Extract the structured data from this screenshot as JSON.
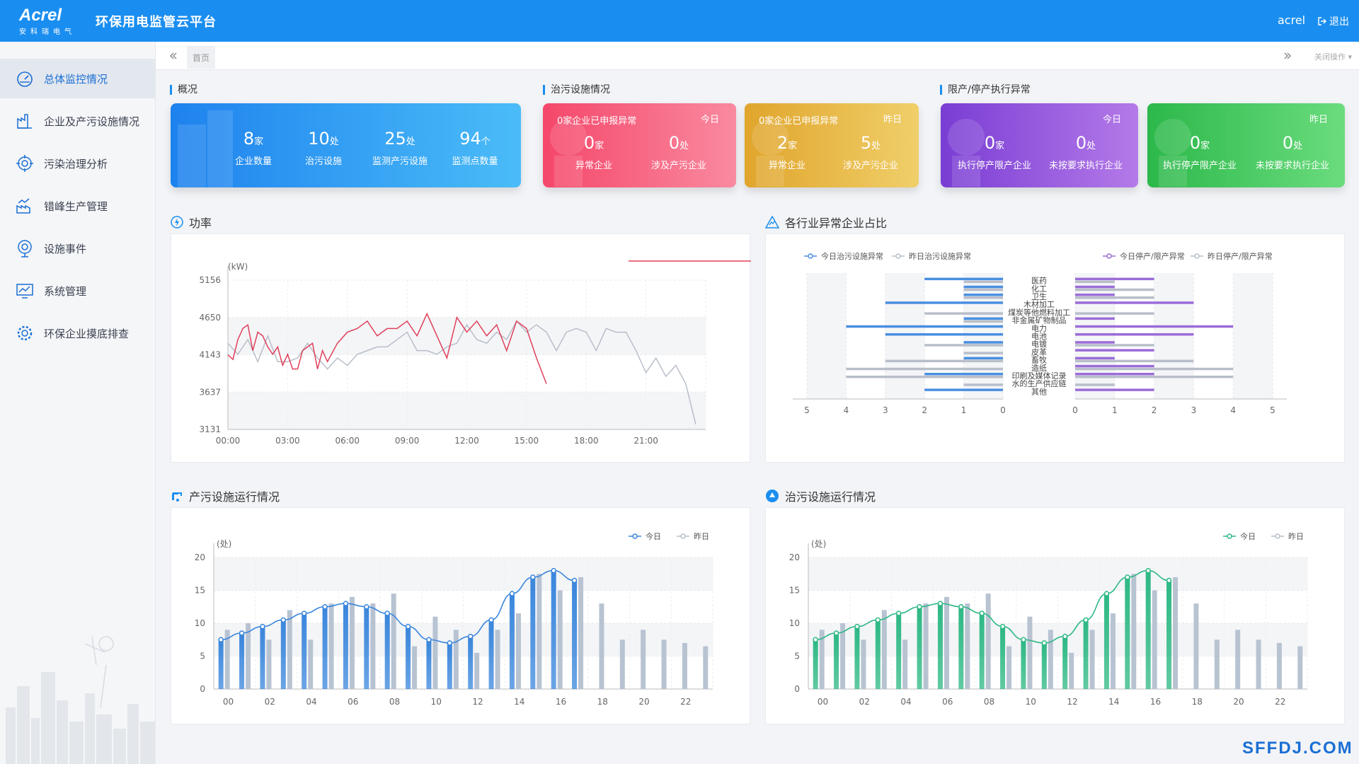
{
  "header": {
    "brand": "Acrel",
    "brand_cn": "安科瑞电气",
    "title": "环保用电监管云平台",
    "user": "acrel",
    "logout": "退出"
  },
  "sidebar": {
    "items": [
      {
        "label": "总体监控情况",
        "icon": "gauge-icon",
        "active": true
      },
      {
        "label": "企业及产污设施情况",
        "icon": "factory-icon"
      },
      {
        "label": "污染治理分析",
        "icon": "target-icon"
      },
      {
        "label": "错峰生产管理",
        "icon": "chart-factory-icon"
      },
      {
        "label": "设施事件",
        "icon": "radar-icon"
      },
      {
        "label": "系统管理",
        "icon": "monitor-chart-icon"
      },
      {
        "label": "环保企业摸底排查",
        "icon": "gear-icon"
      }
    ]
  },
  "tabs": {
    "home": "首页",
    "ops": "关闭操作"
  },
  "overview": {
    "label": "概况",
    "stats": [
      {
        "num": "8",
        "unit": "家",
        "label": "企业数量"
      },
      {
        "num": "10",
        "unit": "处",
        "label": "治污设施"
      },
      {
        "num": "25",
        "unit": "处",
        "label": "监测产污设施"
      },
      {
        "num": "94",
        "unit": "个",
        "label": "监测点数量"
      }
    ]
  },
  "pollution": {
    "label": "治污设施情况",
    "cards": [
      {
        "title": "0家企业已申报异常",
        "day": "今日",
        "a_num": "0",
        "a_unit": "家",
        "a_label": "异常企业",
        "b_num": "0",
        "b_unit": "处",
        "b_label": "涉及产污企业"
      },
      {
        "title": "0家企业已申报异常",
        "day": "昨日",
        "a_num": "2",
        "a_unit": "家",
        "a_label": "异常企业",
        "b_num": "5",
        "b_unit": "处",
        "b_label": "涉及产污企业"
      }
    ]
  },
  "limit": {
    "label": "限产/停产执行异常",
    "cards": [
      {
        "day": "今日",
        "a_num": "0",
        "a_unit": "家",
        "a_label": "执行停产限产企业",
        "b_num": "0",
        "b_unit": "处",
        "b_label": "未按要求执行企业"
      },
      {
        "day": "昨日",
        "a_num": "0",
        "a_unit": "家",
        "a_label": "执行停产限产企业",
        "b_num": "0",
        "b_unit": "处",
        "b_label": "未按要求执行企业"
      }
    ]
  },
  "panels": {
    "power": "功率",
    "industry": "各行业异常企业占比",
    "production": "产污设施运行情况",
    "treatment": "治污设施运行情况"
  },
  "watermark": "SFFDJ.COM",
  "chart_data": [
    {
      "type": "line",
      "unit_label": "(kW)",
      "yticks": [
        "5156",
        "4650",
        "4143",
        "3637",
        "3131"
      ],
      "ylim": [
        3131,
        5156
      ],
      "xticks": [
        "00:00",
        "03:00",
        "06:00",
        "09:00",
        "12:00",
        "15:00",
        "18:00",
        "21:00"
      ],
      "series": [
        {
          "name": "今日",
          "color": "#e0405b",
          "x": [
            0,
            0.25,
            0.5,
            0.75,
            1,
            1.25,
            1.5,
            1.75,
            2,
            2.25,
            2.5,
            2.75,
            3,
            3.25,
            3.5,
            3.75,
            4,
            4.25,
            4.5,
            4.75,
            5,
            5.5,
            6,
            6.5,
            7,
            7.5,
            8,
            8.5,
            9,
            9.5,
            10,
            10.5,
            11,
            11.5,
            12,
            12.5,
            13,
            13.5,
            14,
            14.5,
            15,
            15.5,
            16
          ],
          "values": [
            4143,
            4080,
            4350,
            4500,
            4550,
            4200,
            4450,
            4400,
            4250,
            4150,
            4250,
            4000,
            4150,
            3950,
            3950,
            4200,
            4250,
            4300,
            3950,
            4200,
            4050,
            4300,
            4450,
            4500,
            4600,
            4400,
            4500,
            4500,
            4600,
            4400,
            4700,
            4400,
            4100,
            4650,
            4450,
            4600,
            4400,
            4550,
            4200,
            4600,
            4500,
            4100,
            3750
          ]
        },
        {
          "name": "昨日",
          "color": "#b8bec9",
          "x": [
            0,
            0.5,
            1,
            1.5,
            2,
            2.5,
            3,
            3.5,
            4,
            4.5,
            5,
            5.5,
            6,
            6.5,
            7,
            7.5,
            8,
            8.5,
            9,
            9.5,
            10,
            10.5,
            11,
            11.5,
            12,
            12.5,
            13,
            13.5,
            14,
            14.5,
            15,
            15.5,
            16,
            16.5,
            17,
            17.5,
            18,
            18.5,
            19,
            19.5,
            20,
            20.5,
            21,
            21.5,
            22,
            22.5,
            23,
            23.5
          ],
          "values": [
            4300,
            4150,
            4350,
            4050,
            4400,
            4050,
            4050,
            4100,
            4300,
            4100,
            3950,
            4100,
            4000,
            4150,
            4200,
            4250,
            4250,
            4350,
            4450,
            4200,
            4200,
            4150,
            4250,
            4300,
            4550,
            4350,
            4300,
            4450,
            4350,
            4600,
            4450,
            4550,
            4450,
            4200,
            4450,
            4500,
            4450,
            4200,
            4500,
            4450,
            4450,
            4200,
            3900,
            4100,
            3850,
            4000,
            3750,
            3200
          ]
        }
      ]
    },
    {
      "type": "bar",
      "orientation": "horizontal-butterfly",
      "categories": [
        "医药",
        "化工",
        "卫生",
        "木材加工",
        "煤炭等他燃料加工",
        "非金属矿物制品",
        "电力",
        "电池",
        "电镀",
        "皮革",
        "畜牧",
        "造纸",
        "印刷及媒体记录",
        "水的生产供应链",
        "其他"
      ],
      "xticks_left": [
        "5",
        "4",
        "3",
        "2",
        "1",
        "0"
      ],
      "xticks_right": [
        "0",
        "1",
        "2",
        "3",
        "4",
        "5"
      ],
      "xlim": [
        0,
        5
      ],
      "left_series": [
        {
          "name": "今日治污设施异常",
          "color": "#4a8fe0",
          "values": [
            2,
            1,
            1,
            3,
            0,
            1,
            4,
            3,
            1,
            0,
            1,
            0,
            2,
            0,
            2
          ]
        },
        {
          "name": "昨日治污设施异常",
          "color": "#b8bec9",
          "values": [
            1,
            1,
            1,
            0,
            2,
            1,
            0,
            0,
            2,
            1,
            3,
            4,
            4,
            1,
            0
          ]
        }
      ],
      "right_series": [
        {
          "name": "今日停产/限产异常",
          "color": "#9b6cd8",
          "values": [
            2,
            1,
            1,
            3,
            0,
            1,
            4,
            3,
            1,
            2,
            1,
            2,
            2,
            0,
            2
          ]
        },
        {
          "name": "昨日停产/限产异常",
          "color": "#b8bec9",
          "values": [
            1,
            2,
            2,
            0,
            2,
            0,
            0,
            0,
            2,
            0,
            3,
            4,
            4,
            1,
            0
          ]
        }
      ]
    },
    {
      "type": "bar",
      "unit_label": "(处)",
      "ylim": [
        0,
        20
      ],
      "yticks": [
        "20",
        "15",
        "10",
        "5",
        "0"
      ],
      "xticks": [
        "00",
        "02",
        "04",
        "06",
        "08",
        "10",
        "12",
        "14",
        "16",
        "18",
        "20",
        "22"
      ],
      "series": [
        {
          "name": "今日",
          "color": "#3a86dc",
          "values": [
            7.5,
            8.5,
            9.5,
            10.5,
            11.5,
            12.5,
            13,
            12.5,
            11.5,
            9.5,
            7.5,
            7,
            8,
            10.5,
            14.5,
            17,
            18,
            16.5
          ]
        },
        {
          "name": "昨日",
          "color": "#b8c3d2",
          "values": [
            9,
            10,
            7.5,
            12,
            7.5,
            13,
            14,
            13,
            14.5,
            6.5,
            11,
            9,
            5.5,
            9,
            11.5,
            17.5,
            15,
            17,
            13,
            7.5,
            9,
            7.5,
            7,
            6.5
          ]
        }
      ]
    },
    {
      "type": "bar",
      "unit_label": "(处)",
      "ylim": [
        0,
        20
      ],
      "yticks": [
        "20",
        "15",
        "10",
        "5",
        "0"
      ],
      "xticks": [
        "00",
        "02",
        "04",
        "06",
        "08",
        "10",
        "12",
        "14",
        "16",
        "18",
        "20",
        "22"
      ],
      "series": [
        {
          "name": "今日",
          "color": "#2db884",
          "values": [
            7.5,
            8.5,
            9.5,
            10.5,
            11.5,
            12.5,
            13,
            12.5,
            11.5,
            9.5,
            7.5,
            7,
            8,
            10.5,
            14.5,
            17,
            18,
            16.5
          ]
        },
        {
          "name": "昨日",
          "color": "#b8c3d2",
          "values": [
            9,
            10,
            7.5,
            12,
            7.5,
            13,
            14,
            13,
            14.5,
            6.5,
            11,
            9,
            5.5,
            9,
            11.5,
            17.5,
            15,
            17,
            13,
            7.5,
            9,
            7.5,
            7,
            6.5
          ]
        }
      ]
    }
  ]
}
